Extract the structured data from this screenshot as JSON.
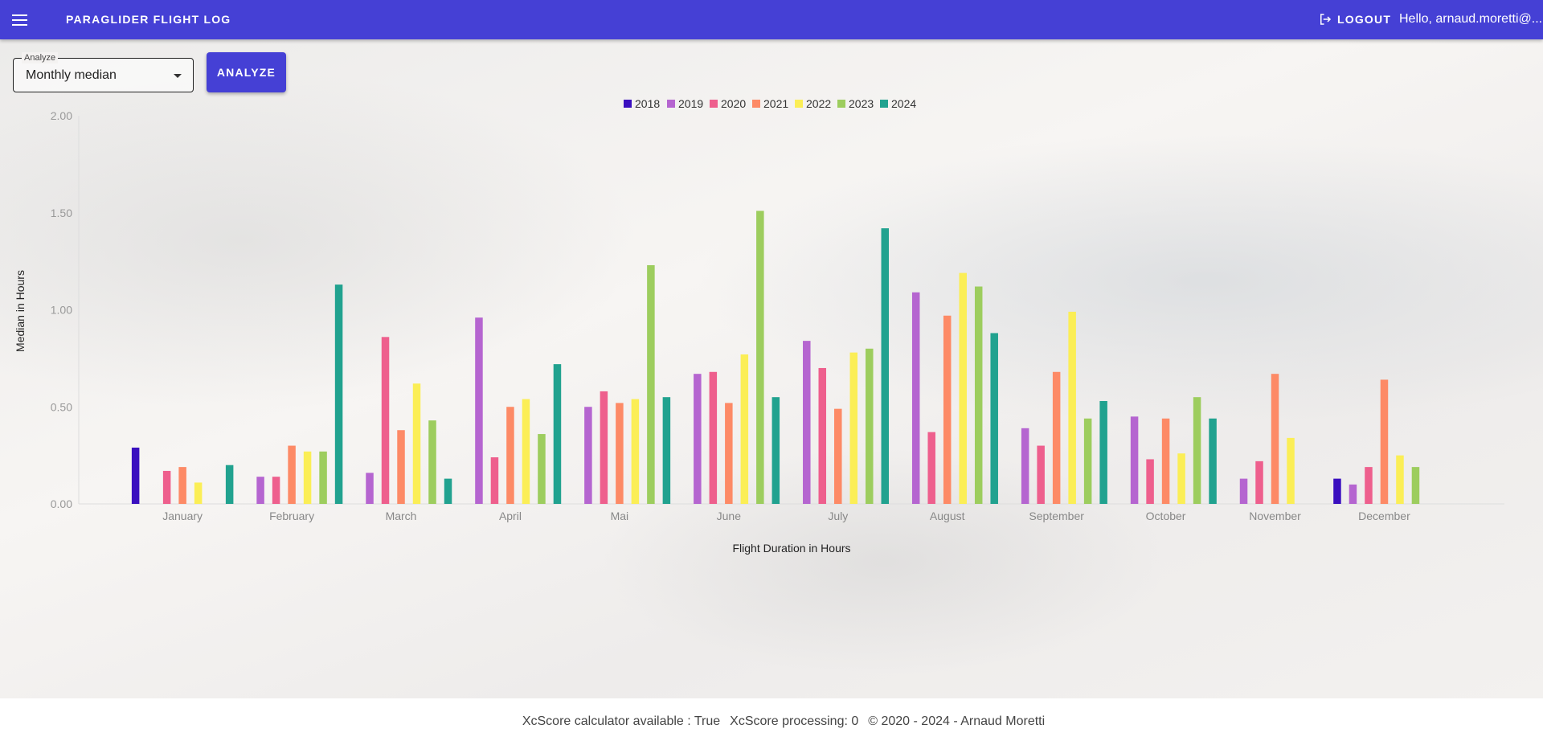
{
  "appbar": {
    "title": "PARAGLIDER FLIGHT LOG",
    "logout_label": "LOGOUT",
    "greeting": "Hello, arnaud.moretti@..."
  },
  "controls": {
    "select_label": "Analyze",
    "select_value": "Monthly median",
    "analyze_button": "ANALYZE"
  },
  "chart_data": {
    "type": "bar",
    "xlabel": "Flight Duration in Hours",
    "ylabel": "Median in Hours",
    "ylim": [
      0,
      2
    ],
    "yticks": [
      "0.00",
      "0.50",
      "1.00",
      "1.50",
      "2.00"
    ],
    "legend_position": "top-center",
    "categories": [
      "January",
      "February",
      "March",
      "April",
      "Mai",
      "June",
      "July",
      "August",
      "September",
      "October",
      "November",
      "December"
    ],
    "series": [
      {
        "name": "2018",
        "color": "#3a0fbf",
        "values": [
          0.29,
          null,
          null,
          null,
          null,
          null,
          null,
          null,
          null,
          null,
          null,
          0.13
        ]
      },
      {
        "name": "2019",
        "color": "#b565d0",
        "values": [
          null,
          0.14,
          0.16,
          0.96,
          0.5,
          0.67,
          0.84,
          1.09,
          0.39,
          0.45,
          0.13,
          0.1
        ]
      },
      {
        "name": "2020",
        "color": "#ee5f8d",
        "values": [
          0.17,
          0.14,
          0.86,
          0.24,
          0.58,
          0.68,
          0.7,
          0.37,
          0.3,
          0.23,
          0.22,
          0.19
        ]
      },
      {
        "name": "2021",
        "color": "#fd8a66",
        "values": [
          0.19,
          0.3,
          0.38,
          0.5,
          0.52,
          0.52,
          0.49,
          0.97,
          0.68,
          0.44,
          0.67,
          0.64
        ]
      },
      {
        "name": "2022",
        "color": "#fbee56",
        "values": [
          0.11,
          0.27,
          0.62,
          0.54,
          0.54,
          0.77,
          0.78,
          1.19,
          0.99,
          0.26,
          0.34,
          0.25
        ]
      },
      {
        "name": "2023",
        "color": "#9dcd5e",
        "values": [
          null,
          0.27,
          0.43,
          0.36,
          1.23,
          1.51,
          0.8,
          1.12,
          0.44,
          0.55,
          null,
          0.19
        ]
      },
      {
        "name": "2024",
        "color": "#21a28f",
        "values": [
          0.2,
          1.13,
          0.13,
          0.72,
          0.55,
          0.55,
          1.42,
          0.88,
          0.53,
          0.44,
          null,
          null
        ]
      }
    ]
  },
  "footer": {
    "xcscore_available": "XcScore calculator available : True",
    "xcscore_processing": "XcScore processing: 0",
    "copyright": "© 2020 - 2024 - Arnaud Moretti"
  }
}
